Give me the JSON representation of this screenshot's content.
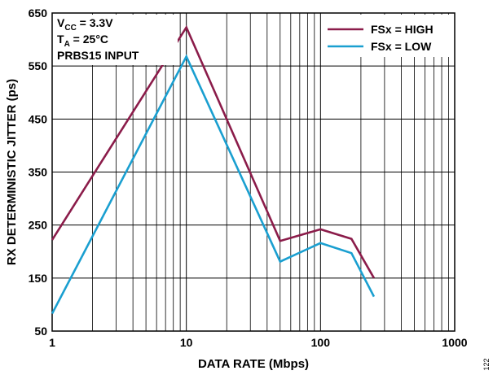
{
  "chart_data": {
    "type": "line",
    "x_scale": "log",
    "xlabel": "DATA RATE (Mbps)",
    "ylabel": "RX DETERMINISTIC JITTER (ps)",
    "xlim": [
      1,
      1000
    ],
    "ylim": [
      50,
      650
    ],
    "x_ticks": [
      "1",
      "10",
      "100",
      "1000"
    ],
    "y_ticks": [
      "50",
      "150",
      "250",
      "350",
      "450",
      "550",
      "650"
    ],
    "grid": true,
    "legend_position": "top-right",
    "annotations": [
      {
        "main": "V",
        "sub": "CC",
        "rest": " = 3.3V"
      },
      {
        "main": "T",
        "sub": "A",
        "rest": " = 25°C"
      },
      {
        "main": "PRBS15 INPUT",
        "sub": "",
        "rest": ""
      }
    ],
    "series": [
      {
        "name": "FSx = HIGH",
        "color": "#8b1c4a",
        "x": [
          1,
          10,
          50,
          100,
          170,
          250
        ],
        "y": [
          222,
          623,
          220,
          242,
          224,
          150
        ]
      },
      {
        "name": "FSx = LOW",
        "color": "#1a9fd0",
        "x": [
          1,
          10,
          50,
          100,
          170,
          250
        ],
        "y": [
          83,
          568,
          181,
          216,
          197,
          115
        ]
      }
    ],
    "figure_id": "122"
  }
}
